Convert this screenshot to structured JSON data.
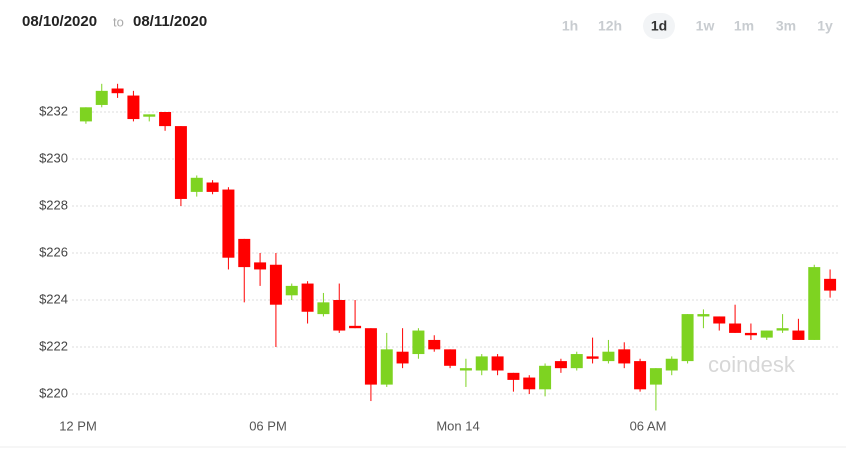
{
  "header": {
    "from": "08/10/2020",
    "to_word": "to",
    "to": "08/11/2020",
    "ranges": [
      "1h",
      "12h",
      "1d",
      "1w",
      "1m",
      "3m",
      "1y"
    ],
    "selected_range": "1d"
  },
  "chart_data": {
    "type": "candlestick",
    "watermark": "coindesk",
    "categories": [
      "12 PM",
      null,
      null,
      null,
      null,
      null,
      null,
      null,
      null,
      null,
      null,
      null,
      "06 PM",
      null,
      null,
      null,
      null,
      null,
      null,
      null,
      null,
      null,
      null,
      null,
      "Mon 14",
      null,
      null,
      null,
      null,
      null,
      null,
      null,
      null,
      null,
      null,
      null,
      "06 AM",
      null,
      null,
      null,
      null,
      null,
      null,
      null,
      null,
      null,
      null,
      null
    ],
    "open": [
      231.6,
      232.3,
      233.0,
      232.7,
      231.8,
      232.0,
      231.4,
      228.6,
      229.0,
      228.7,
      226.6,
      225.6,
      225.5,
      224.2,
      224.7,
      223.4,
      224.0,
      222.9,
      222.8,
      220.4,
      221.8,
      221.7,
      222.3,
      221.9,
      221.0,
      221.0,
      221.6,
      220.9,
      220.7,
      220.2,
      221.4,
      221.1,
      221.6,
      221.4,
      221.9,
      221.4,
      220.4,
      221.0,
      221.4,
      223.3,
      223.3,
      223.0,
      222.6,
      222.4,
      222.7,
      222.7,
      222.3,
      224.9
    ],
    "high": [
      232.2,
      233.2,
      233.2,
      232.9,
      231.9,
      232.0,
      231.4,
      229.3,
      229.1,
      228.8,
      226.6,
      226.0,
      226.0,
      224.7,
      224.8,
      224.3,
      224.7,
      224.0,
      222.8,
      222.6,
      222.8,
      222.8,
      222.5,
      221.9,
      221.5,
      221.7,
      221.7,
      220.9,
      220.8,
      221.3,
      221.5,
      221.8,
      222.4,
      222.3,
      222.2,
      221.5,
      221.1,
      221.6,
      223.4,
      223.6,
      223.3,
      223.8,
      223.0,
      222.7,
      223.4,
      223.2,
      225.5,
      225.3
    ],
    "low": [
      231.5,
      232.2,
      232.6,
      231.6,
      231.6,
      231.2,
      228.0,
      228.4,
      228.5,
      225.3,
      223.9,
      224.6,
      222.0,
      224.0,
      223.0,
      223.3,
      222.6,
      222.8,
      219.7,
      220.3,
      221.1,
      221.5,
      221.8,
      221.1,
      220.3,
      220.8,
      220.8,
      220.1,
      220.0,
      219.9,
      220.9,
      221.0,
      221.3,
      221.3,
      221.1,
      220.1,
      219.3,
      220.8,
      221.3,
      222.8,
      222.7,
      222.6,
      222.3,
      222.3,
      222.6,
      222.3,
      222.3,
      224.1
    ],
    "close": [
      232.2,
      232.9,
      232.8,
      231.7,
      231.9,
      231.4,
      228.3,
      229.2,
      228.6,
      225.8,
      225.4,
      225.3,
      223.8,
      224.6,
      223.5,
      223.9,
      222.7,
      222.8,
      220.4,
      221.9,
      221.3,
      222.7,
      221.9,
      221.2,
      221.1,
      221.6,
      221.0,
      220.6,
      220.2,
      221.2,
      221.1,
      221.7,
      221.5,
      221.8,
      221.3,
      220.2,
      221.1,
      221.5,
      223.4,
      223.4,
      223.0,
      222.6,
      222.5,
      222.7,
      222.8,
      222.3,
      225.4,
      224.4
    ],
    "up_color": "#7ed321",
    "down_color": "#ff0000",
    "ylim": [
      219.3,
      233.8
    ],
    "yticks": [
      {
        "value": 220,
        "label": "$220"
      },
      {
        "value": 222,
        "label": "$222"
      },
      {
        "value": 224,
        "label": "$224"
      },
      {
        "value": 226,
        "label": "$226"
      },
      {
        "value": 228,
        "label": "$228"
      },
      {
        "value": 230,
        "label": "$230"
      },
      {
        "value": 232,
        "label": "$232"
      }
    ],
    "grid": true
  }
}
